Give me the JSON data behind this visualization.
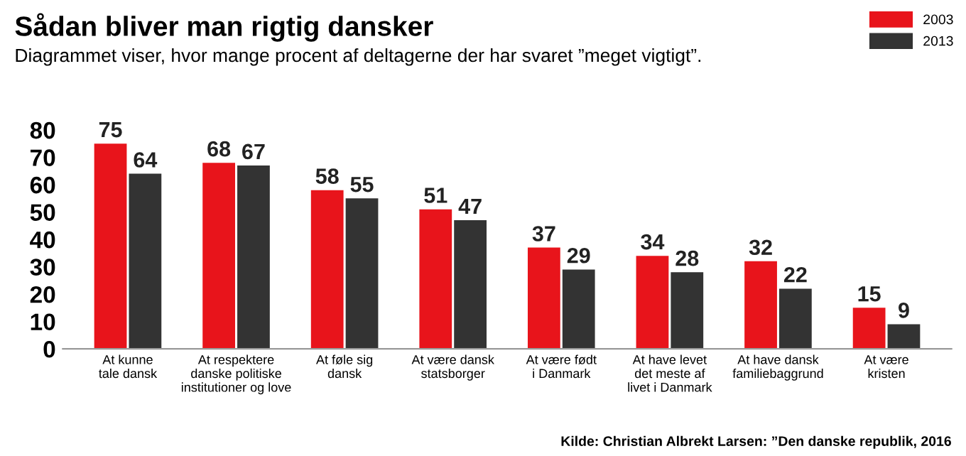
{
  "chart_data": {
    "type": "bar",
    "title": "Sådan bliver man rigtig dansker",
    "subtitle": "Diagrammet viser, hvor mange procent af deltagerne der har svaret ”meget vigtigt”.",
    "categories": [
      "At kunne\ntale dansk",
      "At respektere\ndanske politiske\ninstitutioner og love",
      "At føle sig\ndansk",
      "At være dansk\nstatsborger",
      "At være født\ni Danmark",
      "At have levet\ndet meste af\nlivet i Danmark",
      "At have dansk\nfamiliebaggrund",
      "At være\nkristen"
    ],
    "series": [
      {
        "name": "2003",
        "color": "#e8141b",
        "values": [
          75,
          68,
          58,
          51,
          37,
          34,
          32,
          15
        ]
      },
      {
        "name": "2013",
        "color": "#333333",
        "values": [
          64,
          67,
          55,
          47,
          29,
          28,
          22,
          9
        ]
      }
    ],
    "ylim": [
      0,
      80
    ],
    "yticks": [
      0,
      10,
      20,
      30,
      40,
      50,
      60,
      70,
      80
    ],
    "data_labels": true,
    "grid": false,
    "legend": "top right",
    "annotations": [
      "Kilde: Christian Albrekt Larsen: ”Den danske republik, 2016"
    ]
  }
}
